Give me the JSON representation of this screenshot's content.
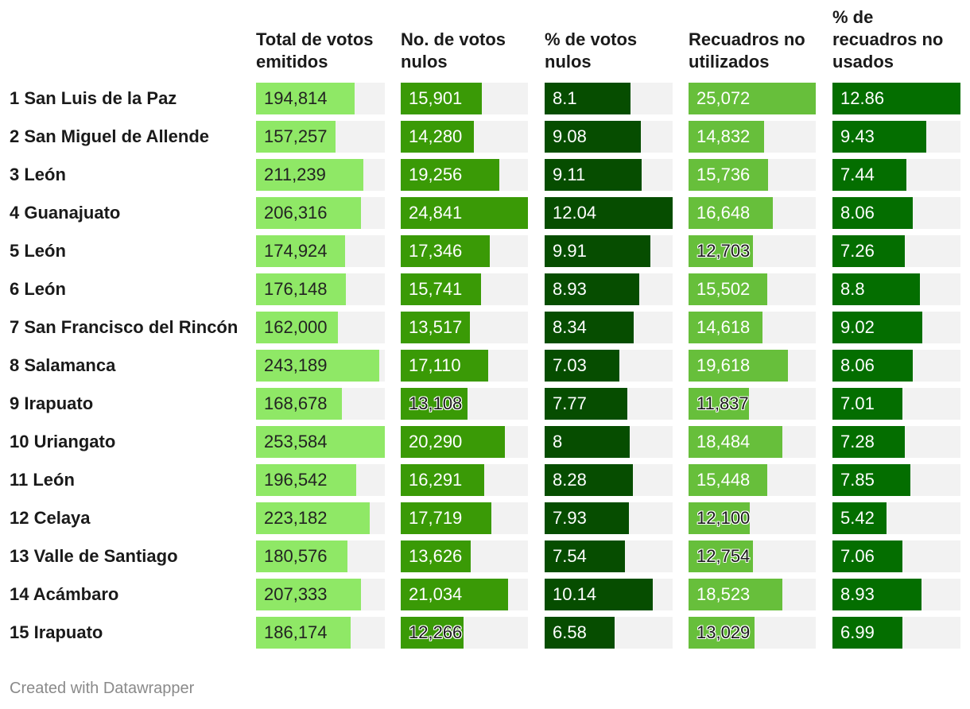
{
  "chart_data": {
    "type": "table",
    "title": "",
    "columns": [
      {
        "label": "Total de votos\nemitidos",
        "color": "#8fe866",
        "text_color": "#222222",
        "max": 253584
      },
      {
        "label": "No. de votos\nnulos",
        "color": "#3a9a06",
        "text_color": "#ffffff",
        "max": 24841
      },
      {
        "label": "% de votos\nnulos",
        "color": "#064d00",
        "text_color": "#ffffff",
        "max": 12.04
      },
      {
        "label": "Recuadros no\nutilizados",
        "color": "#67bf3b",
        "text_color": "#ffffff",
        "max": 25072
      },
      {
        "label": "% de\nrecuadros no\nusados",
        "color": "#046e00",
        "text_color": "#ffffff",
        "max": 12.86
      }
    ],
    "rows": [
      {
        "name": "1 San Luis de la Paz",
        "cells": [
          "194,814",
          "15,901",
          "8.1",
          "25,072",
          "12.86"
        ],
        "values": [
          194814,
          15901,
          8.1,
          25072,
          12.86
        ]
      },
      {
        "name": "2 San Miguel de Allende",
        "cells": [
          "157,257",
          "14,280",
          "9.08",
          "14,832",
          "9.43"
        ],
        "values": [
          157257,
          14280,
          9.08,
          14832,
          9.43
        ]
      },
      {
        "name": "3 León",
        "cells": [
          "211,239",
          "19,256",
          "9.11",
          "15,736",
          "7.44"
        ],
        "values": [
          211239,
          19256,
          9.11,
          15736,
          7.44
        ]
      },
      {
        "name": "4 Guanajuato",
        "cells": [
          "206,316",
          "24,841",
          "12.04",
          "16,648",
          "8.06"
        ],
        "values": [
          206316,
          24841,
          12.04,
          16648,
          8.06
        ]
      },
      {
        "name": "5 León",
        "cells": [
          "174,924",
          "17,346",
          "9.91",
          "12,703",
          "7.26"
        ],
        "values": [
          174924,
          17346,
          9.91,
          12703,
          7.26
        ]
      },
      {
        "name": "6 León",
        "cells": [
          "176,148",
          "15,741",
          "8.93",
          "15,502",
          "8.8"
        ],
        "values": [
          176148,
          15741,
          8.93,
          15502,
          8.8
        ]
      },
      {
        "name": "7 San Francisco del Rincón",
        "cells": [
          "162,000",
          "13,517",
          "8.34",
          "14,618",
          "9.02"
        ],
        "values": [
          162000,
          13517,
          8.34,
          14618,
          9.02
        ]
      },
      {
        "name": "8 Salamanca",
        "cells": [
          "243,189",
          "17,110",
          "7.03",
          "19,618",
          "8.06"
        ],
        "values": [
          243189,
          17110,
          7.03,
          19618,
          8.06
        ]
      },
      {
        "name": "9 Irapuato",
        "cells": [
          "168,678",
          "13,108",
          "7.77",
          "11,837",
          "7.01"
        ],
        "values": [
          168678,
          13108,
          7.77,
          11837,
          7.01
        ]
      },
      {
        "name": "10 Uriangato",
        "cells": [
          "253,584",
          "20,290",
          "8",
          "18,484",
          "7.28"
        ],
        "values": [
          253584,
          20290,
          8,
          18484,
          7.28
        ]
      },
      {
        "name": "11 León",
        "cells": [
          "196,542",
          "16,291",
          "8.28",
          "15,448",
          "7.85"
        ],
        "values": [
          196542,
          16291,
          8.28,
          15448,
          7.85
        ]
      },
      {
        "name": "12 Celaya",
        "cells": [
          "223,182",
          "17,719",
          "7.93",
          "12,100",
          "5.42"
        ],
        "values": [
          223182,
          17719,
          7.93,
          12100,
          5.42
        ]
      },
      {
        "name": "13 Valle de Santiago",
        "cells": [
          "180,576",
          "13,626",
          "7.54",
          "12,754",
          "7.06"
        ],
        "values": [
          180576,
          13626,
          7.54,
          12754,
          7.06
        ]
      },
      {
        "name": "14 Acámbaro",
        "cells": [
          "207,333",
          "21,034",
          "10.14",
          "18,523",
          "8.93"
        ],
        "values": [
          207333,
          21034,
          10.14,
          18523,
          8.93
        ]
      },
      {
        "name": "15 Irapuato",
        "cells": [
          "186,174",
          "12,266",
          "6.58",
          "13,029",
          "6.99"
        ],
        "values": [
          186174,
          12266,
          6.58,
          13029,
          6.99
        ]
      }
    ]
  },
  "footer": {
    "credit": "Created with Datawrapper"
  }
}
